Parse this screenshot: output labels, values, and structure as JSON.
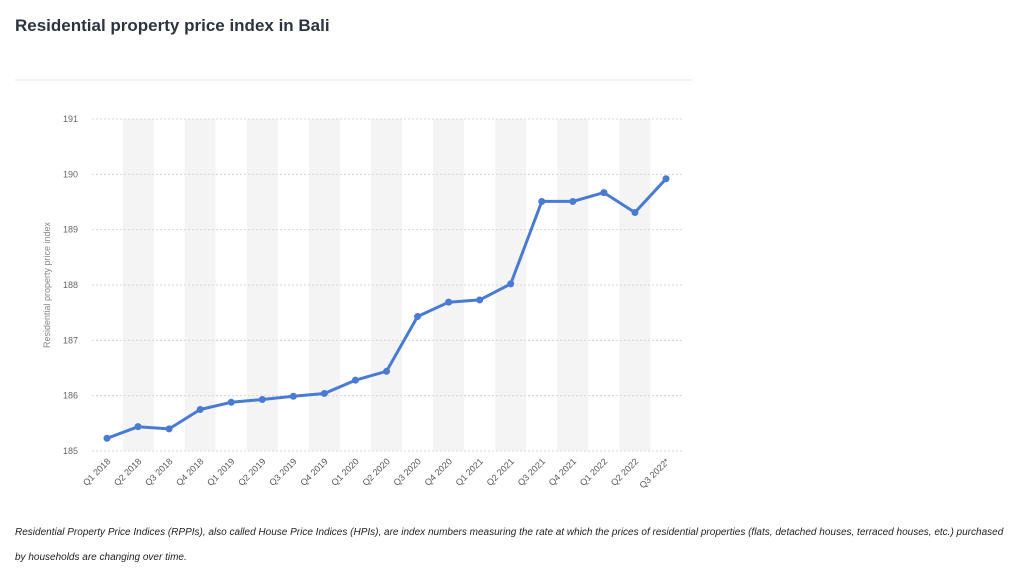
{
  "chart_data": {
    "type": "line",
    "title": "Residential property price index in Bali",
    "ylabel": "Residential property price index",
    "xlabel": "",
    "categories": [
      "Q1 2018",
      "Q2 2018",
      "Q3 2018",
      "Q4 2018",
      "Q1 2019",
      "Q2 2019",
      "Q3 2019",
      "Q4 2019",
      "Q1 2020",
      "Q2 2020",
      "Q3 2020",
      "Q4 2020",
      "Q1 2021",
      "Q2 2021",
      "Q3 2021",
      "Q4 2021",
      "Q1 2022",
      "Q2 2022",
      "Q3 2022*"
    ],
    "series": [
      {
        "values": [
          185.23,
          185.44,
          185.4,
          185.75,
          185.88,
          185.93,
          185.99,
          186.04,
          186.28,
          186.44,
          187.43,
          187.69,
          187.73,
          188.02,
          189.51,
          189.51,
          189.67,
          189.31,
          189.92
        ]
      }
    ],
    "ylim": [
      185,
      191
    ],
    "yticks": [
      185,
      186,
      187,
      188,
      189,
      190,
      191
    ],
    "grid": true,
    "line_color": "#4a7bd4"
  },
  "caption": "Residential Property Price Indices (RPPIs), also called House Price Indices (HPIs), are index numbers measuring the rate at which the prices of residential properties (flats, detached houses, terraced houses, etc.) purchased by households are changing over time."
}
